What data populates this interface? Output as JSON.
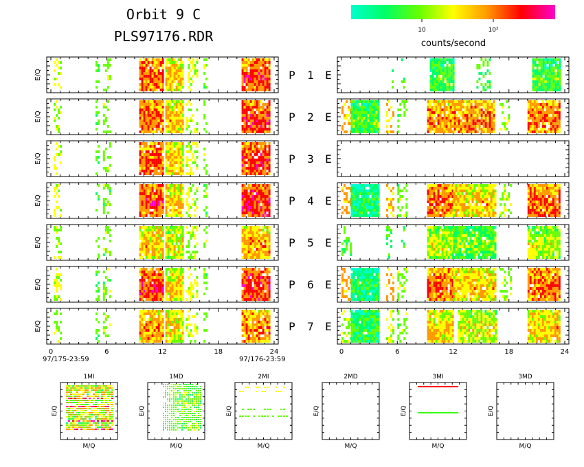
{
  "header": {
    "title": "Orbit 9 C",
    "filename": "PLS97176.RDR",
    "colorbar": {
      "ticks": [
        "10",
        "10²"
      ],
      "label": "counts/second",
      "colors": [
        "#00ffcc",
        "#00ff66",
        "#66ff00",
        "#ffff00",
        "#ff9900",
        "#ff0000",
        "#ff00cc"
      ]
    }
  },
  "chart_data": {
    "type": "heatmap",
    "description_units": "x = hour of day, y = E/Q energy channel bin (relative)",
    "xlim": [
      0,
      24
    ],
    "x_ticks": [
      0,
      6,
      12,
      18,
      24
    ],
    "y_label": "E/Q",
    "date_start": "97/175-23:59",
    "date_end": "97/176-23:59",
    "ion_panels": [
      {
        "label": "P",
        "num": "1",
        "suffix": "E",
        "intensity": 0.7,
        "blocks": [
          [
            0.3,
            1,
            0.6
          ],
          [
            4.8,
            5.2,
            0.3
          ],
          [
            5.6,
            6.4,
            0.4
          ],
          [
            9.5,
            12,
            0.75
          ],
          [
            12.3,
            14.2,
            0.6
          ],
          [
            14.5,
            15.8,
            0.6
          ],
          [
            16.4,
            16.8,
            0.4
          ],
          [
            20.5,
            23.5,
            0.8
          ]
        ]
      },
      {
        "label": "P",
        "num": "2",
        "suffix": "E",
        "intensity": 0.7,
        "blocks": [
          [
            0.3,
            1,
            0.6
          ],
          [
            4.8,
            5.2,
            0.3
          ],
          [
            5.6,
            6.4,
            0.4
          ],
          [
            9.5,
            12,
            0.75
          ],
          [
            12.3,
            14.2,
            0.6
          ],
          [
            14.5,
            15.8,
            0.6
          ],
          [
            16.4,
            16.8,
            0.4
          ],
          [
            20.5,
            23.5,
            0.8
          ]
        ]
      },
      {
        "label": "P",
        "num": "3",
        "suffix": "E",
        "intensity": 0.7,
        "blocks": [
          [
            0.3,
            1,
            0.6
          ],
          [
            4.8,
            5.2,
            0.3
          ],
          [
            5.6,
            6.4,
            0.4
          ],
          [
            9.5,
            12,
            0.75
          ],
          [
            12.3,
            14.2,
            0.6
          ],
          [
            14.5,
            15.8,
            0.6
          ],
          [
            16.4,
            16.8,
            0.4
          ],
          [
            20.5,
            23.5,
            0.8
          ]
        ]
      },
      {
        "label": "P",
        "num": "4",
        "suffix": "E",
        "intensity": 0.75,
        "blocks": [
          [
            0.3,
            1,
            0.6
          ],
          [
            4.8,
            5.2,
            0.3
          ],
          [
            5.6,
            6.4,
            0.4
          ],
          [
            9.5,
            12,
            0.8
          ],
          [
            12.3,
            14.2,
            0.6
          ],
          [
            14.5,
            15.8,
            0.6
          ],
          [
            16.4,
            16.8,
            0.4
          ],
          [
            20.5,
            23.5,
            0.85
          ]
        ]
      },
      {
        "label": "P",
        "num": "5",
        "suffix": "E",
        "intensity": 0.55,
        "blocks": [
          [
            0.3,
            1,
            0.5
          ],
          [
            4.8,
            5.2,
            0.3
          ],
          [
            5.6,
            6.4,
            0.4
          ],
          [
            9.5,
            12,
            0.6
          ],
          [
            12.3,
            14.2,
            0.5
          ],
          [
            14.5,
            15.8,
            0.5
          ],
          [
            16.4,
            16.8,
            0.4
          ],
          [
            20.5,
            23.5,
            0.65
          ]
        ]
      },
      {
        "label": "P",
        "num": "6",
        "suffix": "E",
        "intensity": 0.75,
        "blocks": [
          [
            0.3,
            1,
            0.6
          ],
          [
            4.8,
            5.2,
            0.3
          ],
          [
            5.6,
            6.4,
            0.4
          ],
          [
            9.5,
            12,
            0.8
          ],
          [
            12.3,
            14.2,
            0.6
          ],
          [
            14.5,
            15.8,
            0.6
          ],
          [
            16.4,
            16.8,
            0.4
          ],
          [
            20.5,
            23.5,
            0.85
          ]
        ]
      },
      {
        "label": "P",
        "num": "7",
        "suffix": "E",
        "intensity": 0.6,
        "blocks": [
          [
            0.3,
            1,
            0.5
          ],
          [
            4.8,
            5.2,
            0.3
          ],
          [
            5.6,
            6.4,
            0.4
          ],
          [
            9.5,
            12,
            0.65
          ],
          [
            12.3,
            14.2,
            0.55
          ],
          [
            14.5,
            15.8,
            0.55
          ],
          [
            16.4,
            16.8,
            0.4
          ],
          [
            20.5,
            23.5,
            0.7
          ]
        ]
      }
    ],
    "electron_panels": [
      {
        "blocks": [
          [
            5.4,
            5.6,
            0.3
          ],
          [
            6.4,
            6.7,
            0.3
          ],
          [
            9.5,
            12,
            0.3
          ],
          [
            14.5,
            16,
            0.3
          ],
          [
            20.5,
            23.5,
            0.3
          ]
        ]
      },
      {
        "blocks": [
          [
            0,
            1,
            0.9
          ],
          [
            1,
            4,
            0.3
          ],
          [
            4.8,
            5.6,
            0.8
          ],
          [
            6,
            7,
            0.4
          ],
          [
            9.2,
            16.5,
            0.7
          ],
          [
            17,
            18,
            0.5
          ],
          [
            20,
            23.5,
            0.75
          ]
        ]
      },
      {
        "blocks": []
      },
      {
        "blocks": [
          [
            0,
            1,
            0.9
          ],
          [
            1,
            4,
            0.2
          ],
          [
            4.8,
            5.6,
            0.8
          ],
          [
            6,
            7,
            0.4
          ],
          [
            9.2,
            12,
            0.75
          ],
          [
            12,
            16.5,
            0.6
          ],
          [
            17,
            18.2,
            0.5
          ],
          [
            20,
            23.5,
            0.75
          ]
        ]
      },
      {
        "blocks": [
          [
            0,
            1,
            0.35
          ],
          [
            4.8,
            5.4,
            0.3
          ],
          [
            6.4,
            6.7,
            0.3
          ],
          [
            9.2,
            12,
            0.45
          ],
          [
            12,
            16.5,
            0.35
          ],
          [
            20,
            23.5,
            0.45
          ]
        ]
      },
      {
        "blocks": [
          [
            0,
            1,
            0.9
          ],
          [
            1,
            4,
            0.2
          ],
          [
            4.8,
            5.6,
            0.85
          ],
          [
            6,
            7,
            0.4
          ],
          [
            9.2,
            12,
            0.75
          ],
          [
            12,
            16.5,
            0.6
          ],
          [
            17,
            18.2,
            0.5
          ],
          [
            20,
            23.5,
            0.75
          ]
        ]
      },
      {
        "blocks": [
          [
            0,
            1,
            0.5
          ],
          [
            1,
            4,
            0.25
          ],
          [
            4.8,
            5.6,
            0.55
          ],
          [
            6,
            7,
            0.4
          ],
          [
            9.2,
            12,
            0.6
          ],
          [
            12.5,
            16.5,
            0.5
          ],
          [
            20,
            23.5,
            0.6
          ]
        ]
      }
    ],
    "mq_panels": [
      {
        "title": "1MI",
        "xlabel": "M/Q",
        "ylabel": "E/Q",
        "pattern": "dense"
      },
      {
        "title": "1MD",
        "xlabel": "M/Q",
        "ylabel": "E/Q",
        "pattern": "vertical"
      },
      {
        "title": "2MI",
        "xlabel": "M/Q",
        "ylabel": "E/Q",
        "pattern": "sparse"
      },
      {
        "title": "2MD",
        "xlabel": "M/Q",
        "ylabel": "E/Q",
        "pattern": "empty"
      },
      {
        "title": "3MI",
        "xlabel": "M/Q",
        "ylabel": "E/Q",
        "pattern": "lines"
      },
      {
        "title": "3MD",
        "xlabel": "M/Q",
        "ylabel": "E/Q",
        "pattern": "empty"
      }
    ]
  }
}
